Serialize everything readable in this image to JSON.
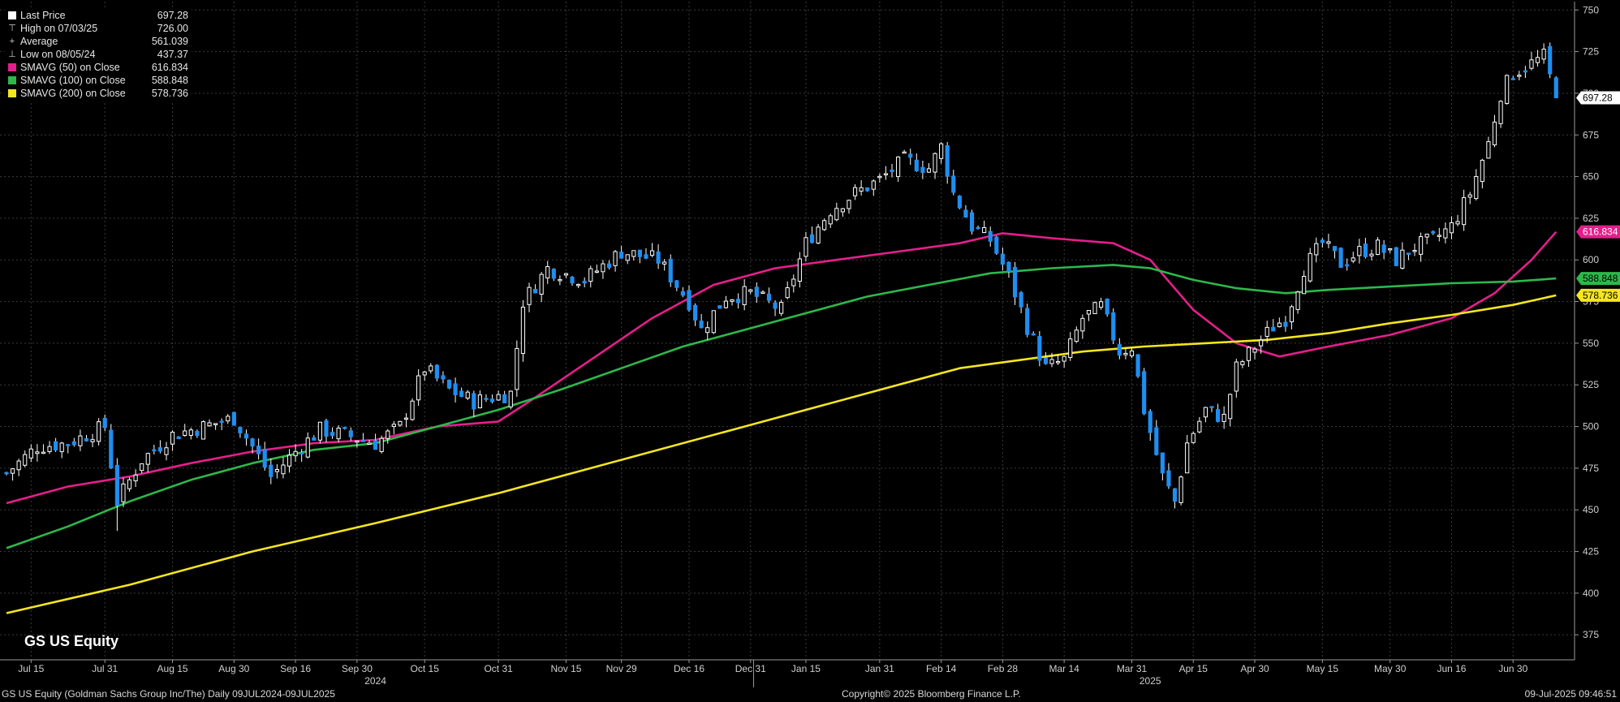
{
  "legend": {
    "items": [
      {
        "label": "Last Price",
        "value": "697.28",
        "symbol": "box",
        "color": "#ffffff"
      },
      {
        "label": "High on 07/03/25",
        "value": "726.00",
        "symbol": "high-marker",
        "color": "#cfcfcf"
      },
      {
        "label": "Average",
        "value": "561.039",
        "symbol": "average-marker",
        "color": "#cfcfcf"
      },
      {
        "label": "Low on 08/05/24",
        "value": "437.37",
        "symbol": "low-marker",
        "color": "#cfcfcf"
      },
      {
        "label": "SMAVG (50)  on Close",
        "value": "616.834",
        "symbol": "box",
        "color": "#e61e8c"
      },
      {
        "label": "SMAVG (100)  on Close",
        "value": "588.848",
        "symbol": "box",
        "color": "#2db84a"
      },
      {
        "label": "SMAVG (200)  on Close",
        "value": "578.736",
        "symbol": "box",
        "color": "#f5e61e"
      }
    ]
  },
  "ticker": "GS US Equity",
  "footer": {
    "left": "GS US Equity (Goldman Sachs Group Inc/The)  Daily 09JUL2024-09JUL2025",
    "center": "Copyright© 2025 Bloomberg Finance L.P.",
    "right": "09-Jul-2025 09:46:51"
  },
  "chart_data": {
    "type": "candlestick",
    "y_axis": {
      "side": "right",
      "range": [
        360,
        755
      ],
      "ticks": [
        375,
        400,
        425,
        450,
        475,
        500,
        525,
        550,
        575,
        600,
        625,
        650,
        675,
        700,
        725,
        750
      ]
    },
    "x_axis": {
      "range": [
        0,
        255
      ],
      "tick_labels": [
        {
          "label": "Jul 15",
          "x": 4
        },
        {
          "label": "Jul 31",
          "x": 16
        },
        {
          "label": "Aug 15",
          "x": 27
        },
        {
          "label": "Aug 30",
          "x": 37
        },
        {
          "label": "Sep 16",
          "x": 47
        },
        {
          "label": "Sep 30",
          "x": 57
        },
        {
          "label": "Oct 15",
          "x": 68
        },
        {
          "label": "Oct 31",
          "x": 80
        },
        {
          "label": "Nov 15",
          "x": 91
        },
        {
          "label": "Nov 29",
          "x": 100
        },
        {
          "label": "Dec 16",
          "x": 111
        },
        {
          "label": "Dec 31",
          "x": 121
        },
        {
          "label": "Jan 15",
          "x": 130
        },
        {
          "label": "Jan 31",
          "x": 142
        },
        {
          "label": "Feb 14",
          "x": 152
        },
        {
          "label": "Feb 28",
          "x": 162
        },
        {
          "label": "Mar 14",
          "x": 172
        },
        {
          "label": "Mar 31",
          "x": 183
        },
        {
          "label": "Apr 15",
          "x": 193
        },
        {
          "label": "Apr 30",
          "x": 203
        },
        {
          "label": "May 15",
          "x": 214
        },
        {
          "label": "May 30",
          "x": 225
        },
        {
          "label": "Jun 16",
          "x": 235
        },
        {
          "label": "Jun 30",
          "x": 245
        }
      ],
      "year_labels": [
        {
          "label": "2024",
          "x": 60
        },
        {
          "label": "2025",
          "x": 186
        }
      ],
      "year_separators": [
        121.5
      ]
    },
    "price_path": [
      [
        0,
        472
      ],
      [
        5,
        488
      ],
      [
        10,
        490
      ],
      [
        16,
        500
      ],
      [
        18,
        455
      ],
      [
        22,
        480
      ],
      [
        27,
        495
      ],
      [
        32,
        500
      ],
      [
        37,
        505
      ],
      [
        40,
        488
      ],
      [
        43,
        470
      ],
      [
        47,
        485
      ],
      [
        51,
        498
      ],
      [
        55,
        495
      ],
      [
        60,
        490
      ],
      [
        64,
        500
      ],
      [
        68,
        535
      ],
      [
        72,
        522
      ],
      [
        76,
        515
      ],
      [
        82,
        520
      ],
      [
        84,
        575
      ],
      [
        88,
        595
      ],
      [
        94,
        588
      ],
      [
        100,
        605
      ],
      [
        106,
        600
      ],
      [
        111,
        575
      ],
      [
        113,
        558
      ],
      [
        117,
        578
      ],
      [
        121,
        580
      ],
      [
        126,
        570
      ],
      [
        130,
        610
      ],
      [
        134,
        630
      ],
      [
        138,
        640
      ],
      [
        142,
        648
      ],
      [
        146,
        660
      ],
      [
        150,
        655
      ],
      [
        152,
        668
      ],
      [
        154,
        640
      ],
      [
        157,
        620
      ],
      [
        160,
        612
      ],
      [
        163,
        590
      ],
      [
        166,
        560
      ],
      [
        169,
        535
      ],
      [
        172,
        540
      ],
      [
        175,
        565
      ],
      [
        178,
        572
      ],
      [
        181,
        545
      ],
      [
        183,
        548
      ],
      [
        185,
        510
      ],
      [
        188,
        470
      ],
      [
        190,
        455
      ],
      [
        192,
        490
      ],
      [
        195,
        510
      ],
      [
        198,
        505
      ],
      [
        200,
        535
      ],
      [
        203,
        548
      ],
      [
        206,
        560
      ],
      [
        208,
        565
      ],
      [
        211,
        595
      ],
      [
        214,
        610
      ],
      [
        217,
        598
      ],
      [
        220,
        605
      ],
      [
        223,
        608
      ],
      [
        226,
        600
      ],
      [
        229,
        608
      ],
      [
        232,
        612
      ],
      [
        235,
        620
      ],
      [
        238,
        640
      ],
      [
        241,
        670
      ],
      [
        243,
        700
      ],
      [
        245,
        712
      ],
      [
        248,
        718
      ],
      [
        250,
        722
      ],
      [
        252,
        697.28
      ]
    ],
    "highlights": {
      "high": {
        "x": 249,
        "value": 726.0
      },
      "low": {
        "x": 18,
        "value": 437.37
      }
    },
    "series": [
      {
        "name": "SMAVG (50)  on Close",
        "color": "#e61e8c",
        "last": 616.834,
        "values": [
          [
            0,
            454
          ],
          [
            10,
            464
          ],
          [
            20,
            470
          ],
          [
            30,
            478
          ],
          [
            40,
            485
          ],
          [
            50,
            490
          ],
          [
            60,
            492
          ],
          [
            65,
            496
          ],
          [
            70,
            500
          ],
          [
            80,
            503
          ],
          [
            85,
            515
          ],
          [
            95,
            540
          ],
          [
            105,
            565
          ],
          [
            115,
            585
          ],
          [
            125,
            595
          ],
          [
            135,
            600
          ],
          [
            145,
            605
          ],
          [
            155,
            610
          ],
          [
            162,
            616
          ],
          [
            170,
            613
          ],
          [
            180,
            610
          ],
          [
            186,
            600
          ],
          [
            193,
            570
          ],
          [
            200,
            550
          ],
          [
            207,
            542
          ],
          [
            215,
            548
          ],
          [
            225,
            555
          ],
          [
            235,
            565
          ],
          [
            242,
            580
          ],
          [
            248,
            600
          ],
          [
            252,
            616.834
          ]
        ]
      },
      {
        "name": "SMAVG (100)  on Close",
        "color": "#2db84a",
        "last": 588.848,
        "values": [
          [
            0,
            427
          ],
          [
            10,
            440
          ],
          [
            20,
            455
          ],
          [
            30,
            468
          ],
          [
            40,
            478
          ],
          [
            50,
            486
          ],
          [
            60,
            490
          ],
          [
            70,
            500
          ],
          [
            80,
            510
          ],
          [
            90,
            522
          ],
          [
            100,
            535
          ],
          [
            110,
            548
          ],
          [
            120,
            558
          ],
          [
            130,
            568
          ],
          [
            140,
            578
          ],
          [
            150,
            585
          ],
          [
            160,
            592
          ],
          [
            170,
            595
          ],
          [
            180,
            597
          ],
          [
            186,
            595
          ],
          [
            193,
            588
          ],
          [
            200,
            583
          ],
          [
            208,
            580
          ],
          [
            215,
            582
          ],
          [
            225,
            584
          ],
          [
            235,
            586
          ],
          [
            245,
            587
          ],
          [
            252,
            588.848
          ]
        ]
      },
      {
        "name": "SMAVG (200)  on Close",
        "color": "#f5e61e",
        "last": 578.736,
        "values": [
          [
            0,
            388
          ],
          [
            20,
            405
          ],
          [
            40,
            425
          ],
          [
            60,
            442
          ],
          [
            80,
            460
          ],
          [
            100,
            480
          ],
          [
            120,
            500
          ],
          [
            140,
            520
          ],
          [
            155,
            535
          ],
          [
            165,
            540
          ],
          [
            175,
            545
          ],
          [
            185,
            548
          ],
          [
            195,
            550
          ],
          [
            205,
            552
          ],
          [
            215,
            556
          ],
          [
            225,
            562
          ],
          [
            235,
            567
          ],
          [
            245,
            573
          ],
          [
            252,
            578.736
          ]
        ]
      }
    ],
    "price_labels": [
      {
        "name": "last-price",
        "value": 697.28,
        "text": "697.28",
        "bg": "#ffffff",
        "fg": "#000000"
      },
      {
        "name": "sma50",
        "value": 616.834,
        "text": "616.834",
        "bg": "#e61e8c",
        "fg": "#ffffff"
      },
      {
        "name": "sma100",
        "value": 588.848,
        "text": "588.848",
        "bg": "#2db84a",
        "fg": "#000000"
      },
      {
        "name": "sma200",
        "value": 578.736,
        "text": "578.736",
        "bg": "#f5e61e",
        "fg": "#000000"
      }
    ],
    "colors": {
      "up": "#000000",
      "up_border": "#ffffff",
      "down": "#1f8ef0",
      "wick": "#ffffff",
      "grid": "#3a3a3a",
      "axis": "#9a9a9a"
    }
  }
}
